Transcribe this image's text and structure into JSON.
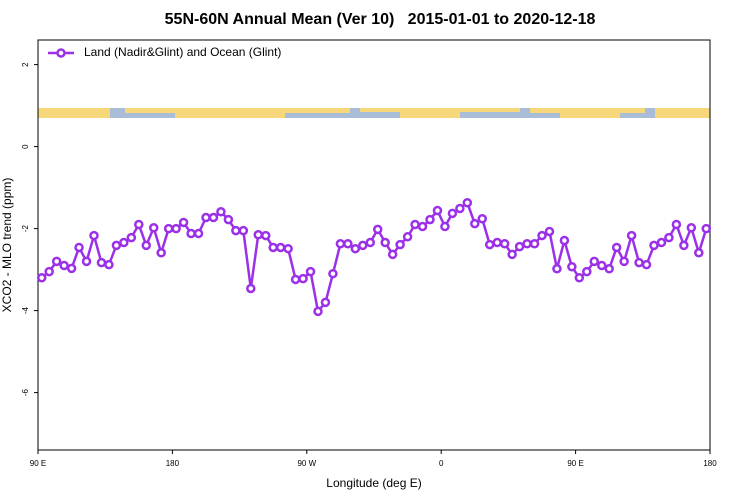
{
  "chart_data": {
    "type": "line",
    "title": "55N-60N Annual Mean (Ver 10)   2015-01-01 to 2020-12-18",
    "x_label": "Longitude (deg E)",
    "y_label": "XCO2 - MLO trend (ppm)",
    "xlim": [
      90,
      540
    ],
    "ylim": [
      -7.4,
      2.6
    ],
    "xticks": [
      {
        "value": 90,
        "label": "90 E"
      },
      180,
      {
        "value": 270,
        "label": "90 W"
      },
      {
        "value": 360,
        "label": "0"
      },
      {
        "value": 450,
        "label": "90 E"
      },
      {
        "value": 540,
        "label": "180"
      }
    ],
    "yticks": [
      -6,
      -4,
      -2,
      0,
      2
    ],
    "legend": "topleft",
    "x": [
      92.5,
      97.5,
      102.5,
      107.5,
      112.5,
      117.5,
      122.5,
      127.5,
      132.5,
      137.5,
      142.5,
      147.5,
      152.5,
      157.5,
      162.5,
      167.5,
      172.5,
      177.5,
      182.5,
      187.5,
      192.5,
      197.5,
      202.5,
      207.5,
      212.5,
      217.5,
      222.5,
      227.5,
      232.5,
      237.5,
      242.5,
      247.5,
      252.5,
      257.5,
      262.5,
      267.5,
      272.5,
      277.5,
      282.5,
      287.5,
      292.5,
      297.5,
      302.5,
      307.5,
      312.5,
      317.5,
      322.5,
      327.5,
      332.5,
      337.5,
      342.5,
      347.5,
      352.5,
      357.5,
      362.5,
      367.5,
      372.5,
      377.5,
      382.5,
      387.5,
      392.5,
      397.5,
      402.5,
      407.5,
      412.5,
      417.5,
      422.5,
      427.5,
      432.5,
      437.5,
      442.5,
      447.5,
      452.5,
      457.5,
      462.5,
      467.5,
      472.5,
      477.5,
      482.5,
      487.5,
      492.5,
      497.5,
      502.5,
      507.5,
      512.5,
      517.5,
      522.5,
      527.5,
      532.5,
      537.5
    ],
    "series": [
      {
        "name": "Land (Nadir&Glint) and Ocean (Glint)",
        "color": "#9b30e8",
        "values": [
          -3.2,
          -3.05,
          -2.8,
          -2.9,
          -2.97,
          -2.46,
          -2.8,
          -2.17,
          -2.83,
          -2.88,
          -2.41,
          -2.34,
          -2.22,
          -1.9,
          -2.41,
          -1.98,
          -2.59,
          -2.0,
          -2.0,
          -1.85,
          -2.12,
          -2.12,
          -1.73,
          -1.73,
          -1.59,
          -1.78,
          -2.05,
          -2.05,
          -3.46,
          -2.15,
          -2.17,
          -2.46,
          -2.46,
          -2.49,
          -3.24,
          -3.22,
          -3.05,
          -4.02,
          -3.8,
          -3.1,
          -2.37,
          -2.37,
          -2.49,
          -2.41,
          -2.34,
          -2.02,
          -2.34,
          -2.63,
          -2.39,
          -2.2,
          -1.9,
          -1.95,
          -1.78,
          -1.56,
          -1.95,
          -1.63,
          -1.51,
          -1.37,
          -1.88,
          -1.76,
          -2.39,
          -2.34,
          -2.37,
          -2.63,
          -2.44,
          -2.37,
          -2.37,
          -2.17,
          -2.07,
          -2.98,
          -2.29,
          -2.93,
          -3.2,
          -3.05,
          -2.8,
          -2.9,
          -2.98,
          -2.46,
          -2.8,
          -2.17,
          -2.83,
          -2.88,
          -2.41,
          -2.34,
          -2.22,
          -1.9,
          -2.41,
          -1.98,
          -2.59,
          -2.0
        ]
      }
    ]
  }
}
